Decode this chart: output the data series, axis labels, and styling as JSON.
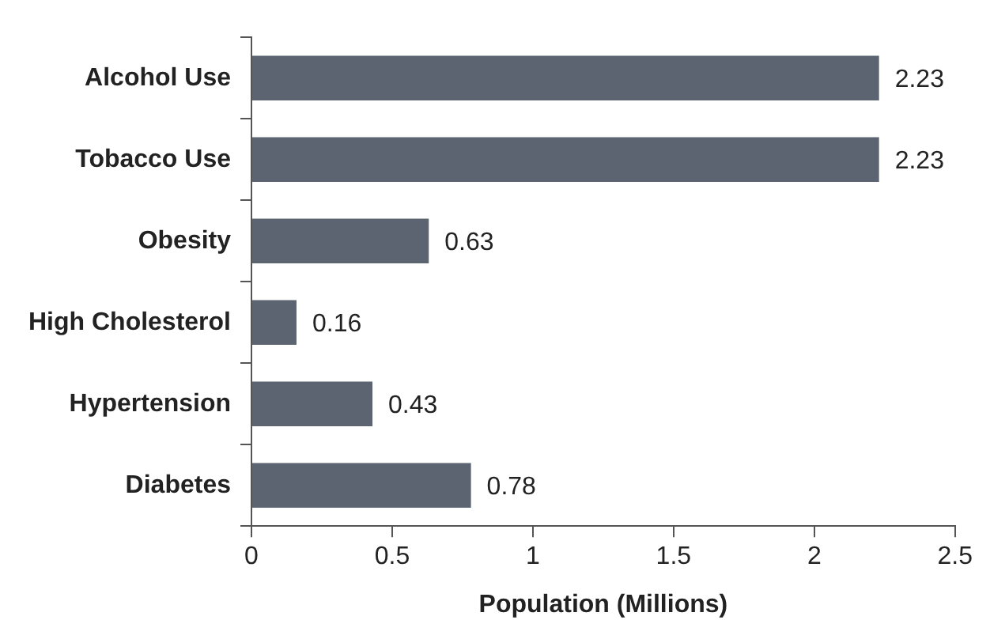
{
  "chart_data": {
    "type": "bar",
    "orientation": "horizontal",
    "xlabel": "Population (Millions)",
    "categories": [
      "Alcohol Use",
      "Tobacco Use",
      "Obesity",
      "High Cholesterol",
      "Hypertension",
      "Diabetes"
    ],
    "values": [
      2.23,
      2.23,
      0.63,
      0.16,
      0.43,
      0.78
    ],
    "color": "#5b6470",
    "xlim": [
      0,
      2.5
    ],
    "xticks": [
      0,
      0.5,
      1,
      1.5,
      2,
      2.5
    ],
    "grid": false,
    "legend": false,
    "data_labels": true
  }
}
